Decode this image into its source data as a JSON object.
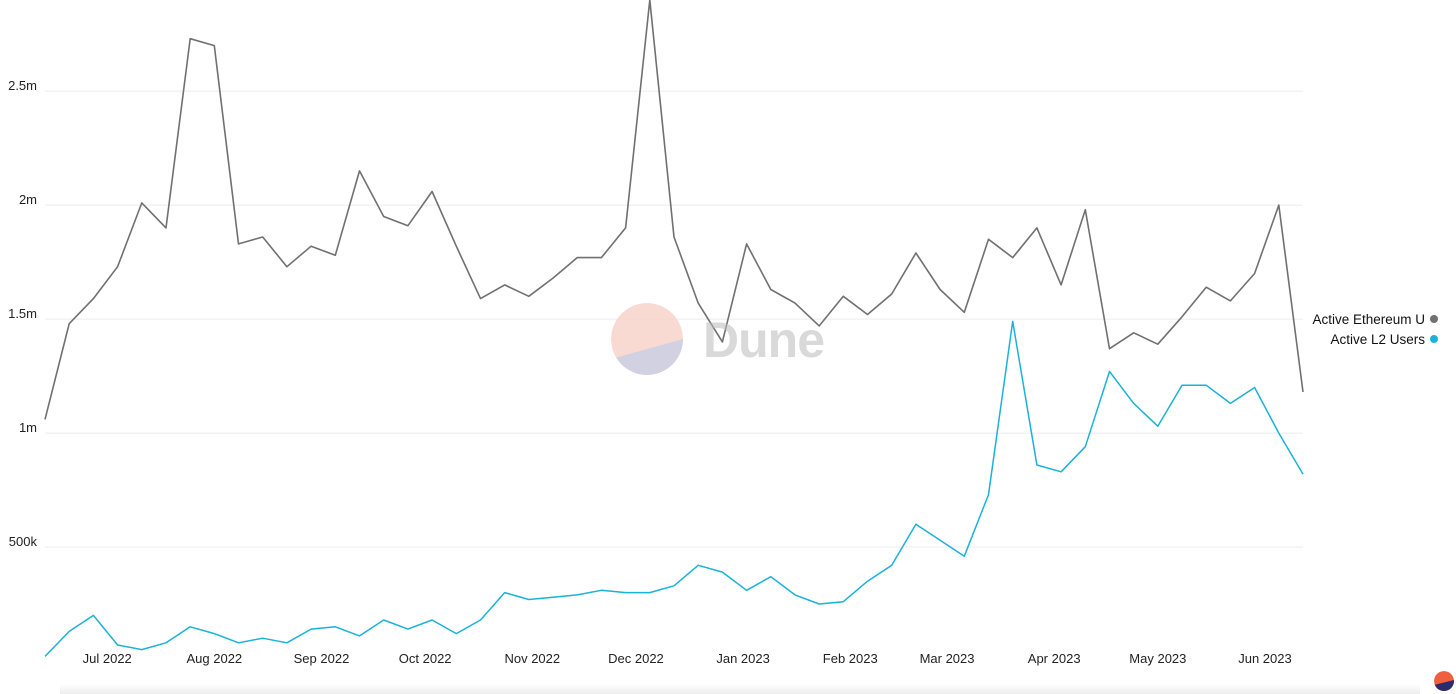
{
  "watermark": {
    "text": "Dune"
  },
  "legend": [
    {
      "label": "Active Ethereum U",
      "color": "#707070"
    },
    {
      "label": "Active L2 Users",
      "color": "#1ab2d8"
    }
  ],
  "chart_data": {
    "type": "line",
    "xlabel": "",
    "ylabel": "",
    "ylim": [
      0,
      2900000
    ],
    "yticks": [
      500000,
      1000000,
      1500000,
      2000000,
      2500000
    ],
    "ytick_labels": [
      "500k",
      "1m",
      "1.5m",
      "2m",
      "2.5m"
    ],
    "xticks": [
      "2022-07-01",
      "2022-08-01",
      "2022-09-01",
      "2022-10-01",
      "2022-11-01",
      "2022-12-01",
      "2023-01-01",
      "2023-02-01",
      "2023-03-01",
      "2023-04-01",
      "2023-05-01",
      "2023-06-01"
    ],
    "xtick_labels": [
      "Jul 2022",
      "Aug 2022",
      "Sep 2022",
      "Oct 2022",
      "Nov 2022",
      "Dec 2022",
      "Jan 2023",
      "Feb 2023",
      "Mar 2023",
      "Apr 2023",
      "May 2023",
      "Jun 2023"
    ],
    "grid": true,
    "legend_position": "right",
    "x": [
      "2022-06-13",
      "2022-06-20",
      "2022-06-27",
      "2022-07-04",
      "2022-07-11",
      "2022-07-18",
      "2022-07-25",
      "2022-08-01",
      "2022-08-08",
      "2022-08-15",
      "2022-08-22",
      "2022-08-29",
      "2022-09-05",
      "2022-09-12",
      "2022-09-19",
      "2022-09-26",
      "2022-10-03",
      "2022-10-10",
      "2022-10-17",
      "2022-10-24",
      "2022-10-31",
      "2022-11-07",
      "2022-11-14",
      "2022-11-21",
      "2022-11-28",
      "2022-12-05",
      "2022-12-12",
      "2022-12-19",
      "2022-12-26",
      "2023-01-02",
      "2023-01-09",
      "2023-01-16",
      "2023-01-23",
      "2023-01-30",
      "2023-02-06",
      "2023-02-13",
      "2023-02-20",
      "2023-02-27",
      "2023-03-06",
      "2023-03-13",
      "2023-03-20",
      "2023-03-27",
      "2023-04-03",
      "2023-04-10",
      "2023-04-17",
      "2023-04-24",
      "2023-05-01",
      "2023-05-08",
      "2023-05-15",
      "2023-05-22",
      "2023-05-29",
      "2023-06-05",
      "2023-06-12"
    ],
    "series": [
      {
        "name": "Active Ethereum U",
        "color": "#707070",
        "values": [
          1060000,
          1480000,
          1590000,
          1730000,
          2010000,
          1900000,
          2730000,
          2700000,
          1830000,
          1860000,
          1730000,
          1820000,
          1780000,
          2150000,
          1950000,
          1910000,
          2060000,
          1820000,
          1590000,
          1650000,
          1600000,
          1680000,
          1770000,
          1770000,
          1900000,
          2900000,
          1860000,
          1570000,
          1400000,
          1830000,
          1630000,
          1570000,
          1470000,
          1600000,
          1520000,
          1610000,
          1790000,
          1630000,
          1530000,
          1850000,
          1770000,
          1900000,
          1650000,
          1980000,
          1370000,
          1440000,
          1390000,
          1510000,
          1640000,
          1580000,
          1700000,
          2000000,
          1180000
        ]
      },
      {
        "name": "Active L2 Users",
        "color": "#1ab2d8",
        "values": [
          20000,
          130000,
          200000,
          70000,
          50000,
          80000,
          150000,
          120000,
          80000,
          100000,
          80000,
          140000,
          150000,
          110000,
          180000,
          140000,
          180000,
          120000,
          180000,
          300000,
          270000,
          280000,
          290000,
          310000,
          300000,
          300000,
          330000,
          420000,
          390000,
          310000,
          370000,
          290000,
          250000,
          260000,
          350000,
          420000,
          600000,
          530000,
          460000,
          730000,
          1490000,
          860000,
          830000,
          940000,
          1270000,
          1130000,
          1030000,
          1210000,
          1210000,
          1130000,
          1200000,
          1000000,
          820000
        ]
      }
    ]
  }
}
